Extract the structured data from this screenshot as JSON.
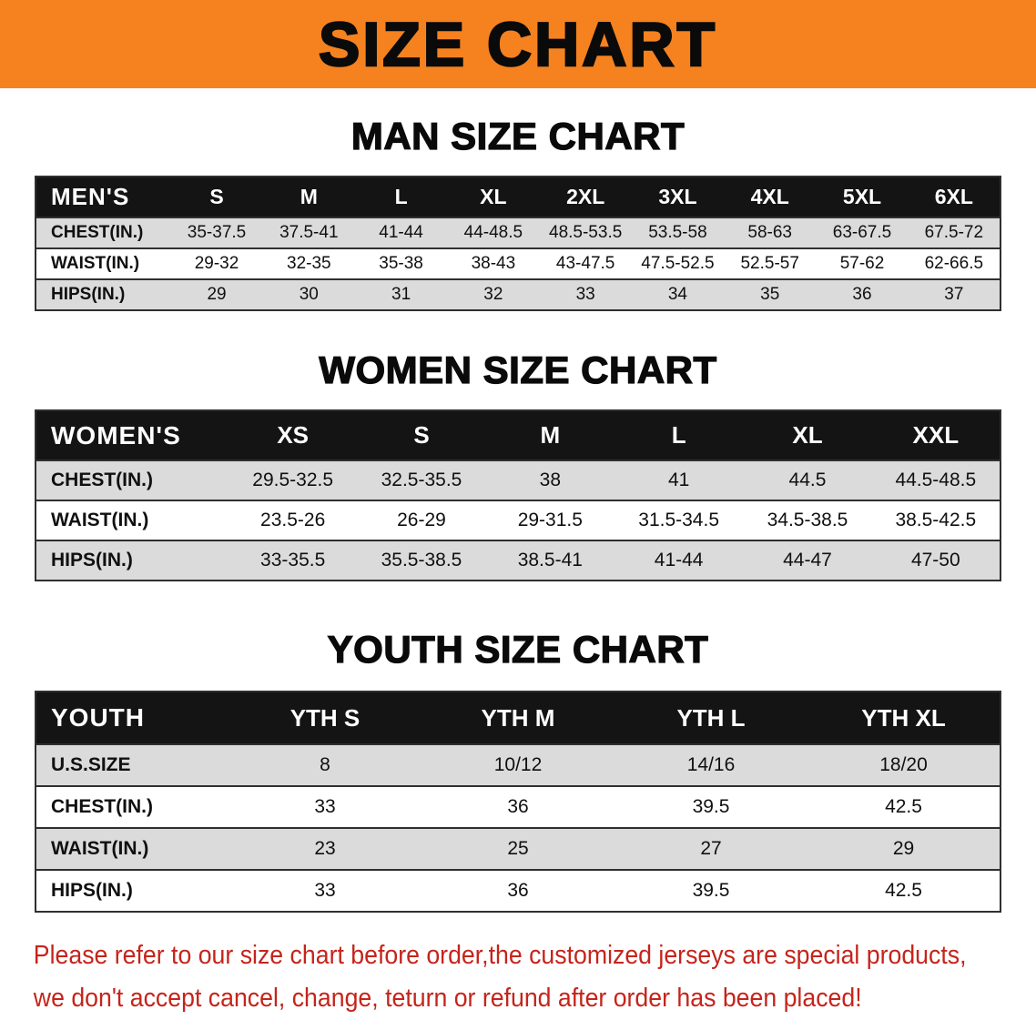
{
  "banner": {
    "title": "SIZE CHART"
  },
  "colors": {
    "banner-bg": "#F5821F",
    "table-header-bg": "#141414",
    "table-header-text": "#FFFFFF",
    "row-stripe": "#DBDBDB",
    "table-border": "#2F2F2F",
    "disclaimer-red": "#C5241B"
  },
  "chart_data": [
    {
      "type": "table",
      "title": "MAN SIZE CHART",
      "columns": [
        "MEN'S",
        "S",
        "M",
        "L",
        "XL",
        "2XL",
        "3XL",
        "4XL",
        "5XL",
        "6XL"
      ],
      "rows": [
        [
          "CHEST(IN.)",
          "35-37.5",
          "37.5-41",
          "41-44",
          "44-48.5",
          "48.5-53.5",
          "53.5-58",
          "58-63",
          "63-67.5",
          "67.5-72"
        ],
        [
          "WAIST(IN.)",
          "29-32",
          "32-35",
          "35-38",
          "38-43",
          "43-47.5",
          "47.5-52.5",
          "52.5-57",
          "57-62",
          "62-66.5"
        ],
        [
          "HIPS(IN.)",
          "29",
          "30",
          "31",
          "32",
          "33",
          "34",
          "35",
          "36",
          "37"
        ]
      ]
    },
    {
      "type": "table",
      "title": "WOMEN SIZE CHART",
      "columns": [
        "WOMEN'S",
        "XS",
        "S",
        "M",
        "L",
        "XL",
        "XXL"
      ],
      "rows": [
        [
          "CHEST(IN.)",
          "29.5-32.5",
          "32.5-35.5",
          "38",
          "41",
          "44.5",
          "44.5-48.5"
        ],
        [
          "WAIST(IN.)",
          "23.5-26",
          "26-29",
          "29-31.5",
          "31.5-34.5",
          "34.5-38.5",
          "38.5-42.5"
        ],
        [
          "HIPS(IN.)",
          "33-35.5",
          "35.5-38.5",
          "38.5-41",
          "41-44",
          "44-47",
          "47-50"
        ]
      ]
    },
    {
      "type": "table",
      "title": "YOUTH SIZE CHART",
      "columns": [
        "YOUTH",
        "YTH S",
        "YTH M",
        "YTH L",
        "YTH XL"
      ],
      "rows": [
        [
          "U.S.SIZE",
          "8",
          "10/12",
          "14/16",
          "18/20"
        ],
        [
          "CHEST(IN.)",
          "33",
          "36",
          "39.5",
          "42.5"
        ],
        [
          "WAIST(IN.)",
          "23",
          "25",
          "27",
          "29"
        ],
        [
          "HIPS(IN.)",
          "33",
          "36",
          "39.5",
          "42.5"
        ]
      ]
    }
  ],
  "disclaimer": {
    "line1": "Please refer to our size chart before order,the customized jerseys are special products,",
    "line2": "we don't accept cancel, change, teturn or refund after order has been placed!"
  }
}
